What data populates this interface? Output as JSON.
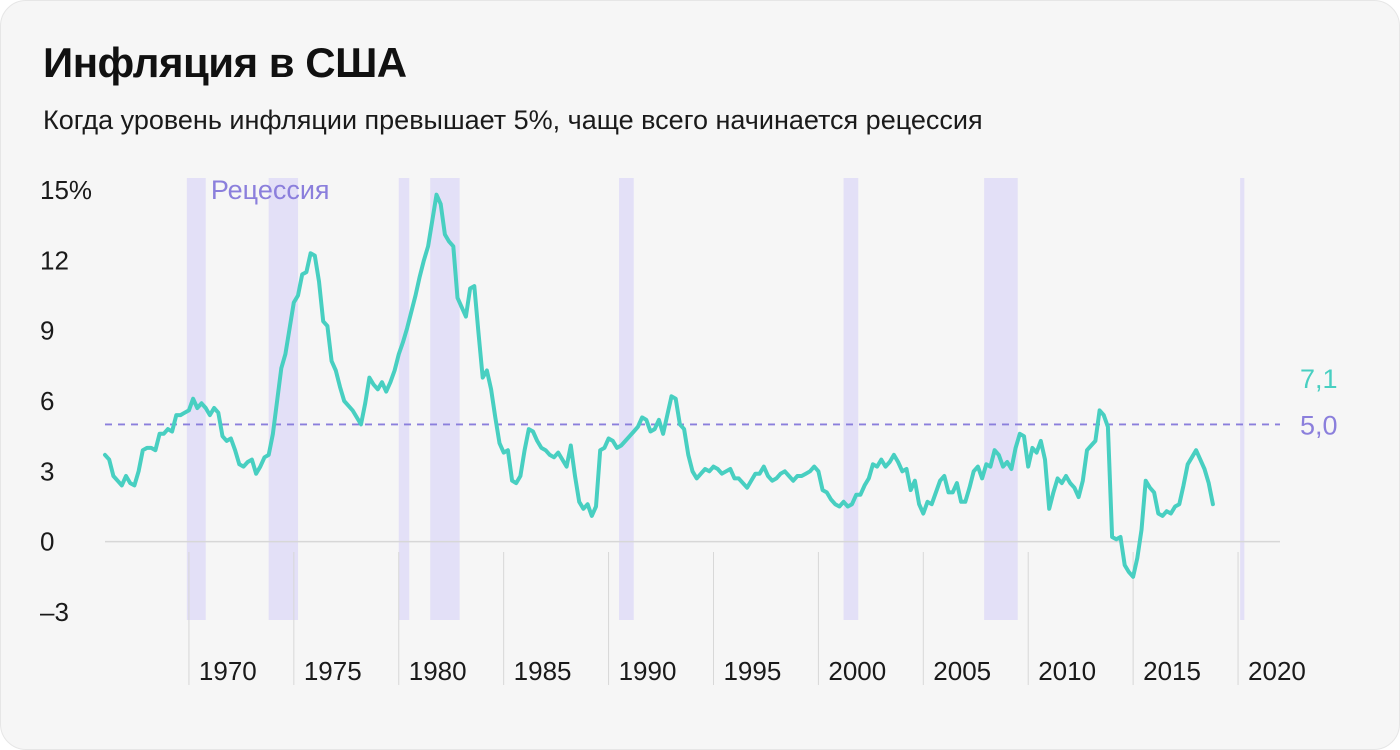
{
  "title": "Инфляция в США",
  "subtitle": "Когда уровень инфляции превышает 5%, чаще всего начинается рецессия",
  "colors": {
    "line": "#48cfc1",
    "threshold": "#8b7fdc",
    "recession": "#e3e0f7",
    "text": "#1a1a1a",
    "grid": "#d7d7d7"
  },
  "chart_data": {
    "type": "line",
    "title": "Инфляция в США",
    "y_ticks": [
      {
        "value": 15,
        "label": "15%"
      },
      {
        "value": 12,
        "label": "12"
      },
      {
        "value": 9,
        "label": "9"
      },
      {
        "value": 6,
        "label": "6"
      },
      {
        "value": 3,
        "label": "3"
      },
      {
        "value": 0,
        "label": "0"
      },
      {
        "value": -3,
        "label": "–3"
      }
    ],
    "x_ticks": [
      {
        "value": 1970,
        "label": "1970"
      },
      {
        "value": 1975,
        "label": "1975"
      },
      {
        "value": 1980,
        "label": "1980"
      },
      {
        "value": 1985,
        "label": "1985"
      },
      {
        "value": 1990,
        "label": "1990"
      },
      {
        "value": 1995,
        "label": "1995"
      },
      {
        "value": 2000,
        "label": "2000"
      },
      {
        "value": 2005,
        "label": "2005"
      },
      {
        "value": 2010,
        "label": "2010"
      },
      {
        "value": 2015,
        "label": "2015"
      },
      {
        "value": 2020,
        "label": "2020"
      }
    ],
    "xlim": [
      1966,
      2022
    ],
    "ylim": [
      -3,
      15
    ],
    "threshold": {
      "value": 5.0,
      "label": "5,0"
    },
    "last_value_label": "7,1",
    "recession_label": "Рецессия",
    "recessions": [
      [
        1969.9,
        1970.8
      ],
      [
        1973.8,
        1975.2
      ],
      [
        1980.0,
        1980.5
      ],
      [
        1981.5,
        1982.9
      ],
      [
        1990.5,
        1991.2
      ],
      [
        2001.2,
        2001.9
      ],
      [
        2007.9,
        2009.5
      ],
      [
        2020.1,
        2020.3
      ]
    ],
    "series": [
      {
        "points": [
          [
            1966.0,
            3.7
          ],
          [
            1966.2,
            3.5
          ],
          [
            1966.4,
            2.8
          ],
          [
            1966.6,
            2.6
          ],
          [
            1966.8,
            2.4
          ],
          [
            1967.0,
            2.8
          ],
          [
            1967.2,
            2.5
          ],
          [
            1967.4,
            2.4
          ],
          [
            1967.6,
            3.0
          ],
          [
            1967.8,
            3.9
          ],
          [
            1968.0,
            4.0
          ],
          [
            1968.2,
            4.0
          ],
          [
            1968.4,
            3.9
          ],
          [
            1968.6,
            4.6
          ],
          [
            1968.8,
            4.6
          ],
          [
            1969.0,
            4.8
          ],
          [
            1969.2,
            4.7
          ],
          [
            1969.4,
            5.4
          ],
          [
            1969.6,
            5.4
          ],
          [
            1969.8,
            5.5
          ],
          [
            1970.0,
            5.6
          ],
          [
            1970.2,
            6.1
          ],
          [
            1970.4,
            5.7
          ],
          [
            1970.6,
            5.9
          ],
          [
            1970.8,
            5.7
          ],
          [
            1971.0,
            5.4
          ],
          [
            1971.2,
            5.7
          ],
          [
            1971.4,
            5.5
          ],
          [
            1971.6,
            4.5
          ],
          [
            1971.8,
            4.3
          ],
          [
            1972.0,
            4.4
          ],
          [
            1972.2,
            3.9
          ],
          [
            1972.4,
            3.3
          ],
          [
            1972.6,
            3.2
          ],
          [
            1972.8,
            3.4
          ],
          [
            1973.0,
            3.5
          ],
          [
            1973.2,
            2.9
          ],
          [
            1973.4,
            3.2
          ],
          [
            1973.6,
            3.6
          ],
          [
            1973.8,
            3.7
          ],
          [
            1974.0,
            4.6
          ],
          [
            1974.2,
            6.0
          ],
          [
            1974.4,
            7.4
          ],
          [
            1974.6,
            8.0
          ],
          [
            1974.8,
            9.1
          ],
          [
            1975.0,
            10.2
          ],
          [
            1975.2,
            10.5
          ],
          [
            1975.4,
            11.4
          ],
          [
            1975.6,
            11.5
          ],
          [
            1975.8,
            12.3
          ],
          [
            1976.0,
            12.2
          ],
          [
            1976.2,
            11.1
          ],
          [
            1976.4,
            9.4
          ],
          [
            1976.6,
            9.2
          ],
          [
            1976.8,
            7.7
          ],
          [
            1977.0,
            7.3
          ],
          [
            1977.2,
            6.6
          ],
          [
            1977.4,
            6.0
          ],
          [
            1977.6,
            5.8
          ],
          [
            1977.8,
            5.6
          ],
          [
            1978.0,
            5.3
          ],
          [
            1978.2,
            5.0
          ],
          [
            1978.4,
            5.9
          ],
          [
            1978.6,
            7.0
          ],
          [
            1978.8,
            6.7
          ],
          [
            1979.0,
            6.5
          ],
          [
            1979.2,
            6.8
          ],
          [
            1979.4,
            6.4
          ],
          [
            1979.6,
            6.8
          ],
          [
            1979.8,
            7.3
          ],
          [
            1980.0,
            8.0
          ],
          [
            1980.2,
            8.5
          ],
          [
            1980.4,
            9.1
          ],
          [
            1980.6,
            9.8
          ],
          [
            1980.8,
            10.5
          ],
          [
            1981.0,
            11.3
          ],
          [
            1981.2,
            12.0
          ],
          [
            1981.4,
            12.6
          ],
          [
            1981.6,
            13.7
          ],
          [
            1981.8,
            14.8
          ],
          [
            1982.0,
            14.4
          ],
          [
            1982.2,
            13.1
          ],
          [
            1982.4,
            12.8
          ],
          [
            1982.6,
            12.6
          ],
          [
            1982.8,
            10.4
          ],
          [
            1983.0,
            10.0
          ],
          [
            1983.2,
            9.6
          ],
          [
            1983.4,
            10.8
          ],
          [
            1983.6,
            10.9
          ],
          [
            1983.8,
            8.9
          ],
          [
            1984.0,
            7.0
          ],
          [
            1984.2,
            7.3
          ],
          [
            1984.4,
            6.5
          ],
          [
            1984.6,
            5.3
          ],
          [
            1984.8,
            4.2
          ],
          [
            1985.0,
            3.8
          ],
          [
            1985.2,
            3.9
          ],
          [
            1985.4,
            2.6
          ],
          [
            1985.6,
            2.5
          ],
          [
            1985.8,
            2.8
          ],
          [
            1986.0,
            3.9
          ],
          [
            1986.2,
            4.8
          ],
          [
            1986.4,
            4.7
          ],
          [
            1986.6,
            4.3
          ],
          [
            1986.8,
            4.0
          ],
          [
            1987.0,
            3.9
          ],
          [
            1987.2,
            3.7
          ],
          [
            1987.4,
            3.6
          ],
          [
            1987.6,
            3.8
          ],
          [
            1987.8,
            3.5
          ],
          [
            1988.0,
            3.2
          ],
          [
            1988.2,
            4.1
          ],
          [
            1988.4,
            2.8
          ],
          [
            1988.6,
            1.7
          ],
          [
            1988.8,
            1.4
          ],
          [
            1989.0,
            1.6
          ],
          [
            1989.2,
            1.1
          ],
          [
            1989.4,
            1.5
          ],
          [
            1989.6,
            3.9
          ],
          [
            1989.8,
            4.0
          ],
          [
            1990.0,
            4.4
          ],
          [
            1990.2,
            4.3
          ],
          [
            1990.4,
            4.0
          ],
          [
            1990.6,
            4.1
          ],
          [
            1990.8,
            4.3
          ],
          [
            1991.0,
            4.5
          ],
          [
            1991.2,
            4.7
          ],
          [
            1991.4,
            4.9
          ],
          [
            1991.6,
            5.3
          ],
          [
            1991.8,
            5.2
          ],
          [
            1992.0,
            4.7
          ],
          [
            1992.2,
            4.8
          ],
          [
            1992.4,
            5.2
          ],
          [
            1992.6,
            4.6
          ],
          [
            1992.8,
            5.4
          ],
          [
            1993.0,
            6.2
          ],
          [
            1993.2,
            6.1
          ],
          [
            1993.4,
            5.0
          ],
          [
            1993.6,
            4.8
          ],
          [
            1993.8,
            3.7
          ],
          [
            1994.0,
            3.0
          ],
          [
            1994.2,
            2.7
          ],
          [
            1994.4,
            2.9
          ],
          [
            1994.6,
            3.1
          ],
          [
            1994.8,
            3.0
          ],
          [
            1995.0,
            3.2
          ],
          [
            1995.2,
            3.1
          ],
          [
            1995.4,
            2.9
          ],
          [
            1995.6,
            3.0
          ],
          [
            1995.8,
            3.1
          ],
          [
            1996.0,
            2.7
          ],
          [
            1996.2,
            2.7
          ],
          [
            1996.4,
            2.5
          ],
          [
            1996.6,
            2.3
          ],
          [
            1996.8,
            2.6
          ],
          [
            1997.0,
            2.9
          ],
          [
            1997.2,
            2.9
          ],
          [
            1997.4,
            3.2
          ],
          [
            1997.6,
            2.8
          ],
          [
            1997.8,
            2.6
          ],
          [
            1998.0,
            2.7
          ],
          [
            1998.2,
            2.9
          ],
          [
            1998.4,
            3.0
          ],
          [
            1998.6,
            2.8
          ],
          [
            1998.8,
            2.6
          ],
          [
            1999.0,
            2.8
          ],
          [
            1999.2,
            2.8
          ],
          [
            1999.4,
            2.9
          ],
          [
            1999.6,
            3.0
          ],
          [
            1999.8,
            3.2
          ],
          [
            2000.0,
            3.0
          ],
          [
            2000.2,
            2.2
          ],
          [
            2000.4,
            2.1
          ],
          [
            2000.6,
            1.8
          ],
          [
            2000.8,
            1.6
          ],
          [
            2001.0,
            1.5
          ],
          [
            2001.2,
            1.7
          ],
          [
            2001.4,
            1.5
          ],
          [
            2001.6,
            1.6
          ],
          [
            2001.8,
            2.0
          ],
          [
            2002.0,
            2.0
          ],
          [
            2002.2,
            2.4
          ],
          [
            2002.4,
            2.7
          ],
          [
            2002.6,
            3.3
          ],
          [
            2002.8,
            3.2
          ],
          [
            2003.0,
            3.5
          ],
          [
            2003.2,
            3.2
          ],
          [
            2003.4,
            3.4
          ],
          [
            2003.6,
            3.7
          ],
          [
            2003.8,
            3.4
          ],
          [
            2004.0,
            3.0
          ],
          [
            2004.2,
            3.1
          ],
          [
            2004.4,
            2.2
          ],
          [
            2004.6,
            2.6
          ],
          [
            2004.8,
            1.6
          ],
          [
            2005.0,
            1.2
          ],
          [
            2005.2,
            1.7
          ],
          [
            2005.4,
            1.6
          ],
          [
            2005.6,
            2.1
          ],
          [
            2005.8,
            2.6
          ],
          [
            2006.0,
            2.8
          ],
          [
            2006.2,
            2.1
          ],
          [
            2006.4,
            2.1
          ],
          [
            2006.6,
            2.5
          ],
          [
            2006.8,
            1.7
          ],
          [
            2007.0,
            1.7
          ],
          [
            2007.2,
            2.3
          ],
          [
            2007.4,
            3.0
          ],
          [
            2007.6,
            3.2
          ],
          [
            2007.8,
            2.7
          ],
          [
            2008.0,
            3.3
          ],
          [
            2008.2,
            3.2
          ],
          [
            2008.4,
            3.9
          ],
          [
            2008.6,
            3.7
          ],
          [
            2008.8,
            3.2
          ],
          [
            2009.0,
            3.4
          ],
          [
            2009.2,
            3.1
          ],
          [
            2009.4,
            4.0
          ],
          [
            2009.6,
            4.6
          ],
          [
            2009.8,
            4.5
          ],
          [
            2010.0,
            3.2
          ],
          [
            2010.2,
            4.0
          ],
          [
            2010.4,
            3.8
          ],
          [
            2010.6,
            4.3
          ],
          [
            2010.8,
            3.5
          ],
          [
            2011.0,
            1.4
          ],
          [
            2011.2,
            2.1
          ],
          [
            2011.4,
            2.7
          ],
          [
            2011.6,
            2.5
          ],
          [
            2011.8,
            2.8
          ],
          [
            2012.0,
            2.5
          ],
          [
            2012.2,
            2.3
          ],
          [
            2012.4,
            1.9
          ],
          [
            2012.6,
            2.6
          ],
          [
            2012.8,
            3.9
          ],
          [
            2013.0,
            4.1
          ],
          [
            2013.2,
            4.3
          ],
          [
            2013.4,
            5.6
          ],
          [
            2013.6,
            5.4
          ],
          [
            2013.8,
            4.9
          ],
          [
            2014.0,
            0.2
          ],
          [
            2014.2,
            0.1
          ],
          [
            2014.4,
            0.2
          ],
          [
            2014.6,
            -1.0
          ],
          [
            2014.8,
            -1.3
          ],
          [
            2015.0,
            -1.5
          ],
          [
            2015.2,
            -0.7
          ],
          [
            2015.4,
            0.5
          ],
          [
            2015.6,
            2.6
          ],
          [
            2015.8,
            2.3
          ],
          [
            2016.0,
            2.1
          ],
          [
            2016.2,
            1.2
          ],
          [
            2016.4,
            1.1
          ],
          [
            2016.6,
            1.3
          ],
          [
            2016.8,
            1.2
          ],
          [
            2017.0,
            1.5
          ],
          [
            2017.2,
            1.6
          ],
          [
            2017.4,
            2.4
          ],
          [
            2017.6,
            3.3
          ],
          [
            2017.8,
            3.6
          ],
          [
            2018.0,
            3.9
          ],
          [
            2018.2,
            3.5
          ],
          [
            2018.4,
            3.1
          ],
          [
            2018.6,
            2.5
          ],
          [
            2018.8,
            1.6
          ],
          [
            2018.8,
            1.6
          ]
        ]
      }
    ]
  }
}
